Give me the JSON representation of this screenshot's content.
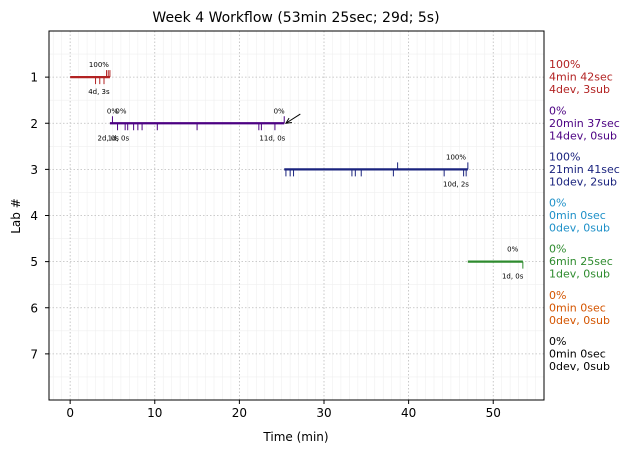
{
  "chart_data": {
    "type": "timeline",
    "title": "Week 4 Workflow (53min 25sec; 29d; 5s)",
    "xlabel": "Time (min)",
    "ylabel": "Lab #",
    "xlim": [
      -2.5,
      56
    ],
    "ylim": [
      8,
      0
    ],
    "x_ticks": [
      0,
      10,
      20,
      30,
      40,
      50
    ],
    "y_ticks": [
      1,
      2,
      3,
      4,
      5,
      6,
      7
    ],
    "grid": true,
    "labs": [
      {
        "lab": 1,
        "color": "#b22222",
        "start": 0.0,
        "end": 4.7,
        "percent": "100%",
        "counts": "4d, 3s",
        "events": [
          {
            "x": 3.0,
            "dir": "down"
          },
          {
            "x": 3.5,
            "dir": "down"
          },
          {
            "x": 4.0,
            "dir": "down"
          },
          {
            "x": 4.3,
            "dir": "up"
          },
          {
            "x": 4.5,
            "dir": "up"
          },
          {
            "x": 4.7,
            "dir": "up"
          }
        ],
        "top_labels": [
          {
            "x": 3.4,
            "text": "100%"
          }
        ],
        "bottom_labels": [
          {
            "x": 3.4,
            "text": "4d, 3s"
          }
        ],
        "side": [
          "100%",
          "4min 42sec",
          "4dev, 3sub"
        ]
      },
      {
        "lab": 2,
        "color": "#4b0082",
        "start": 4.7,
        "end": 25.3,
        "percent": "0%",
        "counts": "11d, 0s",
        "events": [
          {
            "x": 5.0,
            "dir": "up"
          },
          {
            "x": 5.6,
            "dir": "down"
          },
          {
            "x": 6.5,
            "dir": "down"
          },
          {
            "x": 6.8,
            "dir": "down"
          },
          {
            "x": 7.5,
            "dir": "down"
          },
          {
            "x": 8.0,
            "dir": "down"
          },
          {
            "x": 8.5,
            "dir": "down"
          },
          {
            "x": 10.3,
            "dir": "down"
          },
          {
            "x": 15.0,
            "dir": "down"
          },
          {
            "x": 22.3,
            "dir": "down"
          },
          {
            "x": 22.6,
            "dir": "down"
          },
          {
            "x": 24.2,
            "dir": "down"
          },
          {
            "x": 25.3,
            "dir": "up"
          }
        ],
        "top_labels": [
          {
            "x": 5.0,
            "text": "0%"
          },
          {
            "x": 6.0,
            "text": "0%"
          },
          {
            "x": 24.7,
            "text": "0%"
          }
        ],
        "bottom_labels": [
          {
            "x": 4.5,
            "text": "2d, 0s"
          },
          {
            "x": 5.7,
            "text": "1d, 0s"
          },
          {
            "x": 23.9,
            "text": "11d, 0s"
          }
        ],
        "side": [
          "0%",
          "20min 37sec",
          "14dev, 0sub"
        ]
      },
      {
        "lab": 3,
        "color": "#1a237e",
        "start": 25.3,
        "end": 47.0,
        "percent": "100%",
        "counts": "10d, 2s",
        "events": [
          {
            "x": 25.5,
            "dir": "down"
          },
          {
            "x": 26.0,
            "dir": "down"
          },
          {
            "x": 26.4,
            "dir": "down"
          },
          {
            "x": 33.3,
            "dir": "down"
          },
          {
            "x": 33.7,
            "dir": "down"
          },
          {
            "x": 34.4,
            "dir": "down"
          },
          {
            "x": 38.2,
            "dir": "down"
          },
          {
            "x": 38.7,
            "dir": "up"
          },
          {
            "x": 44.2,
            "dir": "down"
          },
          {
            "x": 46.5,
            "dir": "down"
          },
          {
            "x": 46.8,
            "dir": "down"
          },
          {
            "x": 47.0,
            "dir": "up"
          }
        ],
        "top_labels": [
          {
            "x": 45.6,
            "text": "100%"
          }
        ],
        "bottom_labels": [
          {
            "x": 45.6,
            "text": "10d, 2s"
          }
        ],
        "side": [
          "100%",
          "21min 41sec",
          "10dev, 2sub"
        ]
      },
      {
        "lab": 4,
        "color": "#1e90c8",
        "start": null,
        "end": null,
        "events": [],
        "top_labels": [],
        "bottom_labels": [],
        "side": [
          "0%",
          "0min 0sec",
          "0dev, 0sub"
        ]
      },
      {
        "lab": 5,
        "color": "#2e8b2e",
        "start": 47.0,
        "end": 53.5,
        "percent": "0%",
        "counts": "1d, 0s",
        "events": [
          {
            "x": 53.5,
            "dir": "down"
          }
        ],
        "top_labels": [
          {
            "x": 52.3,
            "text": "0%"
          }
        ],
        "bottom_labels": [
          {
            "x": 52.3,
            "text": "1d, 0s"
          }
        ],
        "side": [
          "0%",
          "6min 25sec",
          "1dev, 0sub"
        ]
      },
      {
        "lab": 6,
        "color": "#d45500",
        "start": null,
        "end": null,
        "events": [],
        "top_labels": [],
        "bottom_labels": [],
        "side": [
          "0%",
          "0min 0sec",
          "0dev, 0sub"
        ]
      },
      {
        "lab": 7,
        "color": "#000000",
        "start": null,
        "end": null,
        "events": [],
        "top_labels": [],
        "bottom_labels": [],
        "side": [
          "0%",
          "0min 0sec",
          "0dev, 0sub"
        ]
      }
    ],
    "arrow": {
      "to_x": 25.5,
      "to_y": 2,
      "from_x": 27.2,
      "from_y": 1.8
    }
  }
}
